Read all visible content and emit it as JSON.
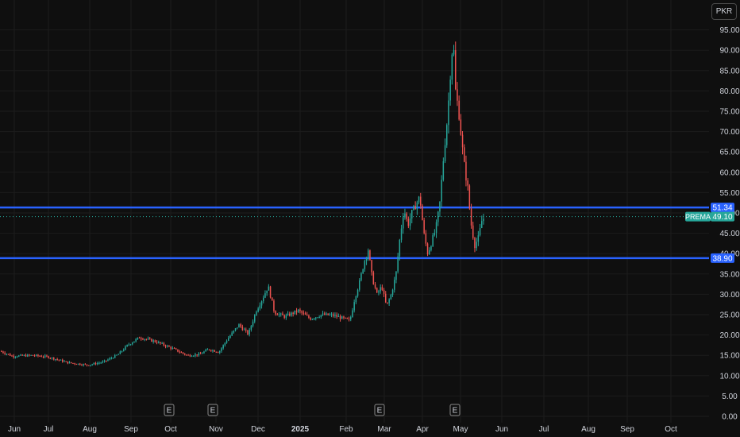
{
  "chart_data": {
    "type": "candlestick",
    "currency": "PKR",
    "ticker": "PREMA",
    "last_price": "49.10",
    "ylim": [
      0,
      97
    ],
    "y_ticks": [
      "0.00",
      "5.00",
      "10.00",
      "15.00",
      "20.00",
      "25.00",
      "30.00",
      "35.00",
      "40.00",
      "45.00",
      "50.00",
      "55.00",
      "60.00",
      "65.00",
      "70.00",
      "75.00",
      "80.00",
      "85.00",
      "90.00",
      "95.00"
    ],
    "x_labels": [
      "Jun",
      "Jul",
      "Aug",
      "Sep",
      "Oct",
      "Nov",
      "Dec",
      "2025",
      "Feb",
      "Mar",
      "Apr",
      "May",
      "Jun",
      "Jul",
      "Aug",
      "Sep",
      "Oct"
    ],
    "levels": [
      {
        "label": "51.34",
        "value": 51.34,
        "color": "#2962ff"
      },
      {
        "label": "38.90",
        "value": 38.9,
        "color": "#2962ff"
      }
    ],
    "event_markers": [
      "E",
      "E",
      "E",
      "E"
    ],
    "up_color": "#26a69a",
    "down_color": "#ef5350",
    "price_path": [
      [
        0,
        16
      ],
      [
        15,
        14.8
      ],
      [
        40,
        15
      ],
      [
        60,
        14.6
      ],
      [
        85,
        13.2
      ],
      [
        110,
        12.6
      ],
      [
        130,
        13.4
      ],
      [
        148,
        15.2
      ],
      [
        160,
        17.5
      ],
      [
        175,
        19.4
      ],
      [
        195,
        18.4
      ],
      [
        215,
        16.8
      ],
      [
        235,
        15
      ],
      [
        250,
        15.2
      ],
      [
        262,
        16.5
      ],
      [
        275,
        15.8
      ],
      [
        285,
        18.8
      ],
      [
        300,
        22.5
      ],
      [
        312,
        20.2
      ],
      [
        322,
        26
      ],
      [
        330,
        29
      ],
      [
        337,
        32
      ],
      [
        345,
        25.5
      ],
      [
        358,
        24.5
      ],
      [
        375,
        26
      ],
      [
        390,
        24
      ],
      [
        405,
        25
      ],
      [
        420,
        24.8
      ],
      [
        440,
        23.5
      ],
      [
        446,
        29
      ],
      [
        452,
        33
      ],
      [
        458,
        38
      ],
      [
        463,
        41
      ],
      [
        468,
        34
      ],
      [
        474,
        30
      ],
      [
        480,
        32
      ],
      [
        486,
        27
      ],
      [
        492,
        30
      ],
      [
        498,
        35
      ],
      [
        503,
        44
      ],
      [
        508,
        51
      ],
      [
        513,
        47
      ],
      [
        518,
        50
      ],
      [
        523,
        52
      ],
      [
        528,
        54
      ],
      [
        533,
        45
      ],
      [
        538,
        40
      ],
      [
        543,
        43
      ],
      [
        548,
        46
      ],
      [
        553,
        52
      ],
      [
        558,
        64
      ],
      [
        563,
        74
      ],
      [
        567,
        86
      ],
      [
        570,
        93
      ],
      [
        573,
        80
      ],
      [
        577,
        75
      ],
      [
        581,
        67
      ],
      [
        585,
        60
      ],
      [
        588,
        57
      ],
      [
        592,
        48
      ],
      [
        597,
        42
      ],
      [
        602,
        44
      ],
      [
        606,
        48
      ],
      [
        610,
        49.1
      ]
    ]
  }
}
